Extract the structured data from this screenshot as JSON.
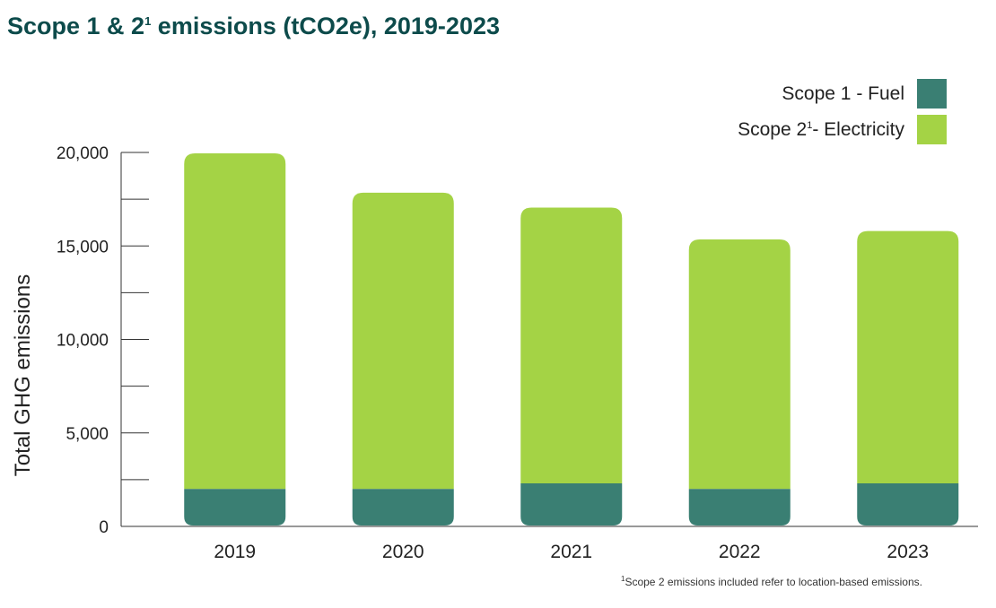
{
  "title": {
    "main": "Scope 1 & 2",
    "sup": "1",
    "rest": " emissions (tCO2e), 2019-2023"
  },
  "legend": {
    "scope1": "Scope 1 - Fuel",
    "scope2_pre": "Scope 2",
    "scope2_sup": "1",
    "scope2_post": "- Electricity"
  },
  "footnote": {
    "sup": "1",
    "text": "Scope 2 emissions included refer to location-based emissions."
  },
  "colors": {
    "scope1": "#3a7f73",
    "scope2": "#a4d345",
    "title": "#0d4b4b"
  },
  "chart_data": {
    "type": "bar",
    "stacked": true,
    "title": "Scope 1 & 2 emissions (tCO2e), 2019-2023",
    "xlabel": "",
    "ylabel": "Total GHG emissions",
    "categories": [
      "2019",
      "2020",
      "2021",
      "2022",
      "2023"
    ],
    "series": [
      {
        "name": "Scope 1 - Fuel",
        "values": [
          2000,
          2000,
          2300,
          2000,
          2300
        ]
      },
      {
        "name": "Scope 2 - Electricity",
        "values": [
          17950,
          15850,
          14750,
          13350,
          13500
        ]
      }
    ],
    "ylim": [
      0,
      20000
    ],
    "yticks": [
      0,
      5000,
      10000,
      15000,
      20000
    ],
    "ytick_labels": [
      "0",
      "5,000",
      "10,000",
      "15,000",
      "20,000"
    ],
    "minor_step": 2500,
    "grid": false,
    "legend_position": "top-right"
  }
}
